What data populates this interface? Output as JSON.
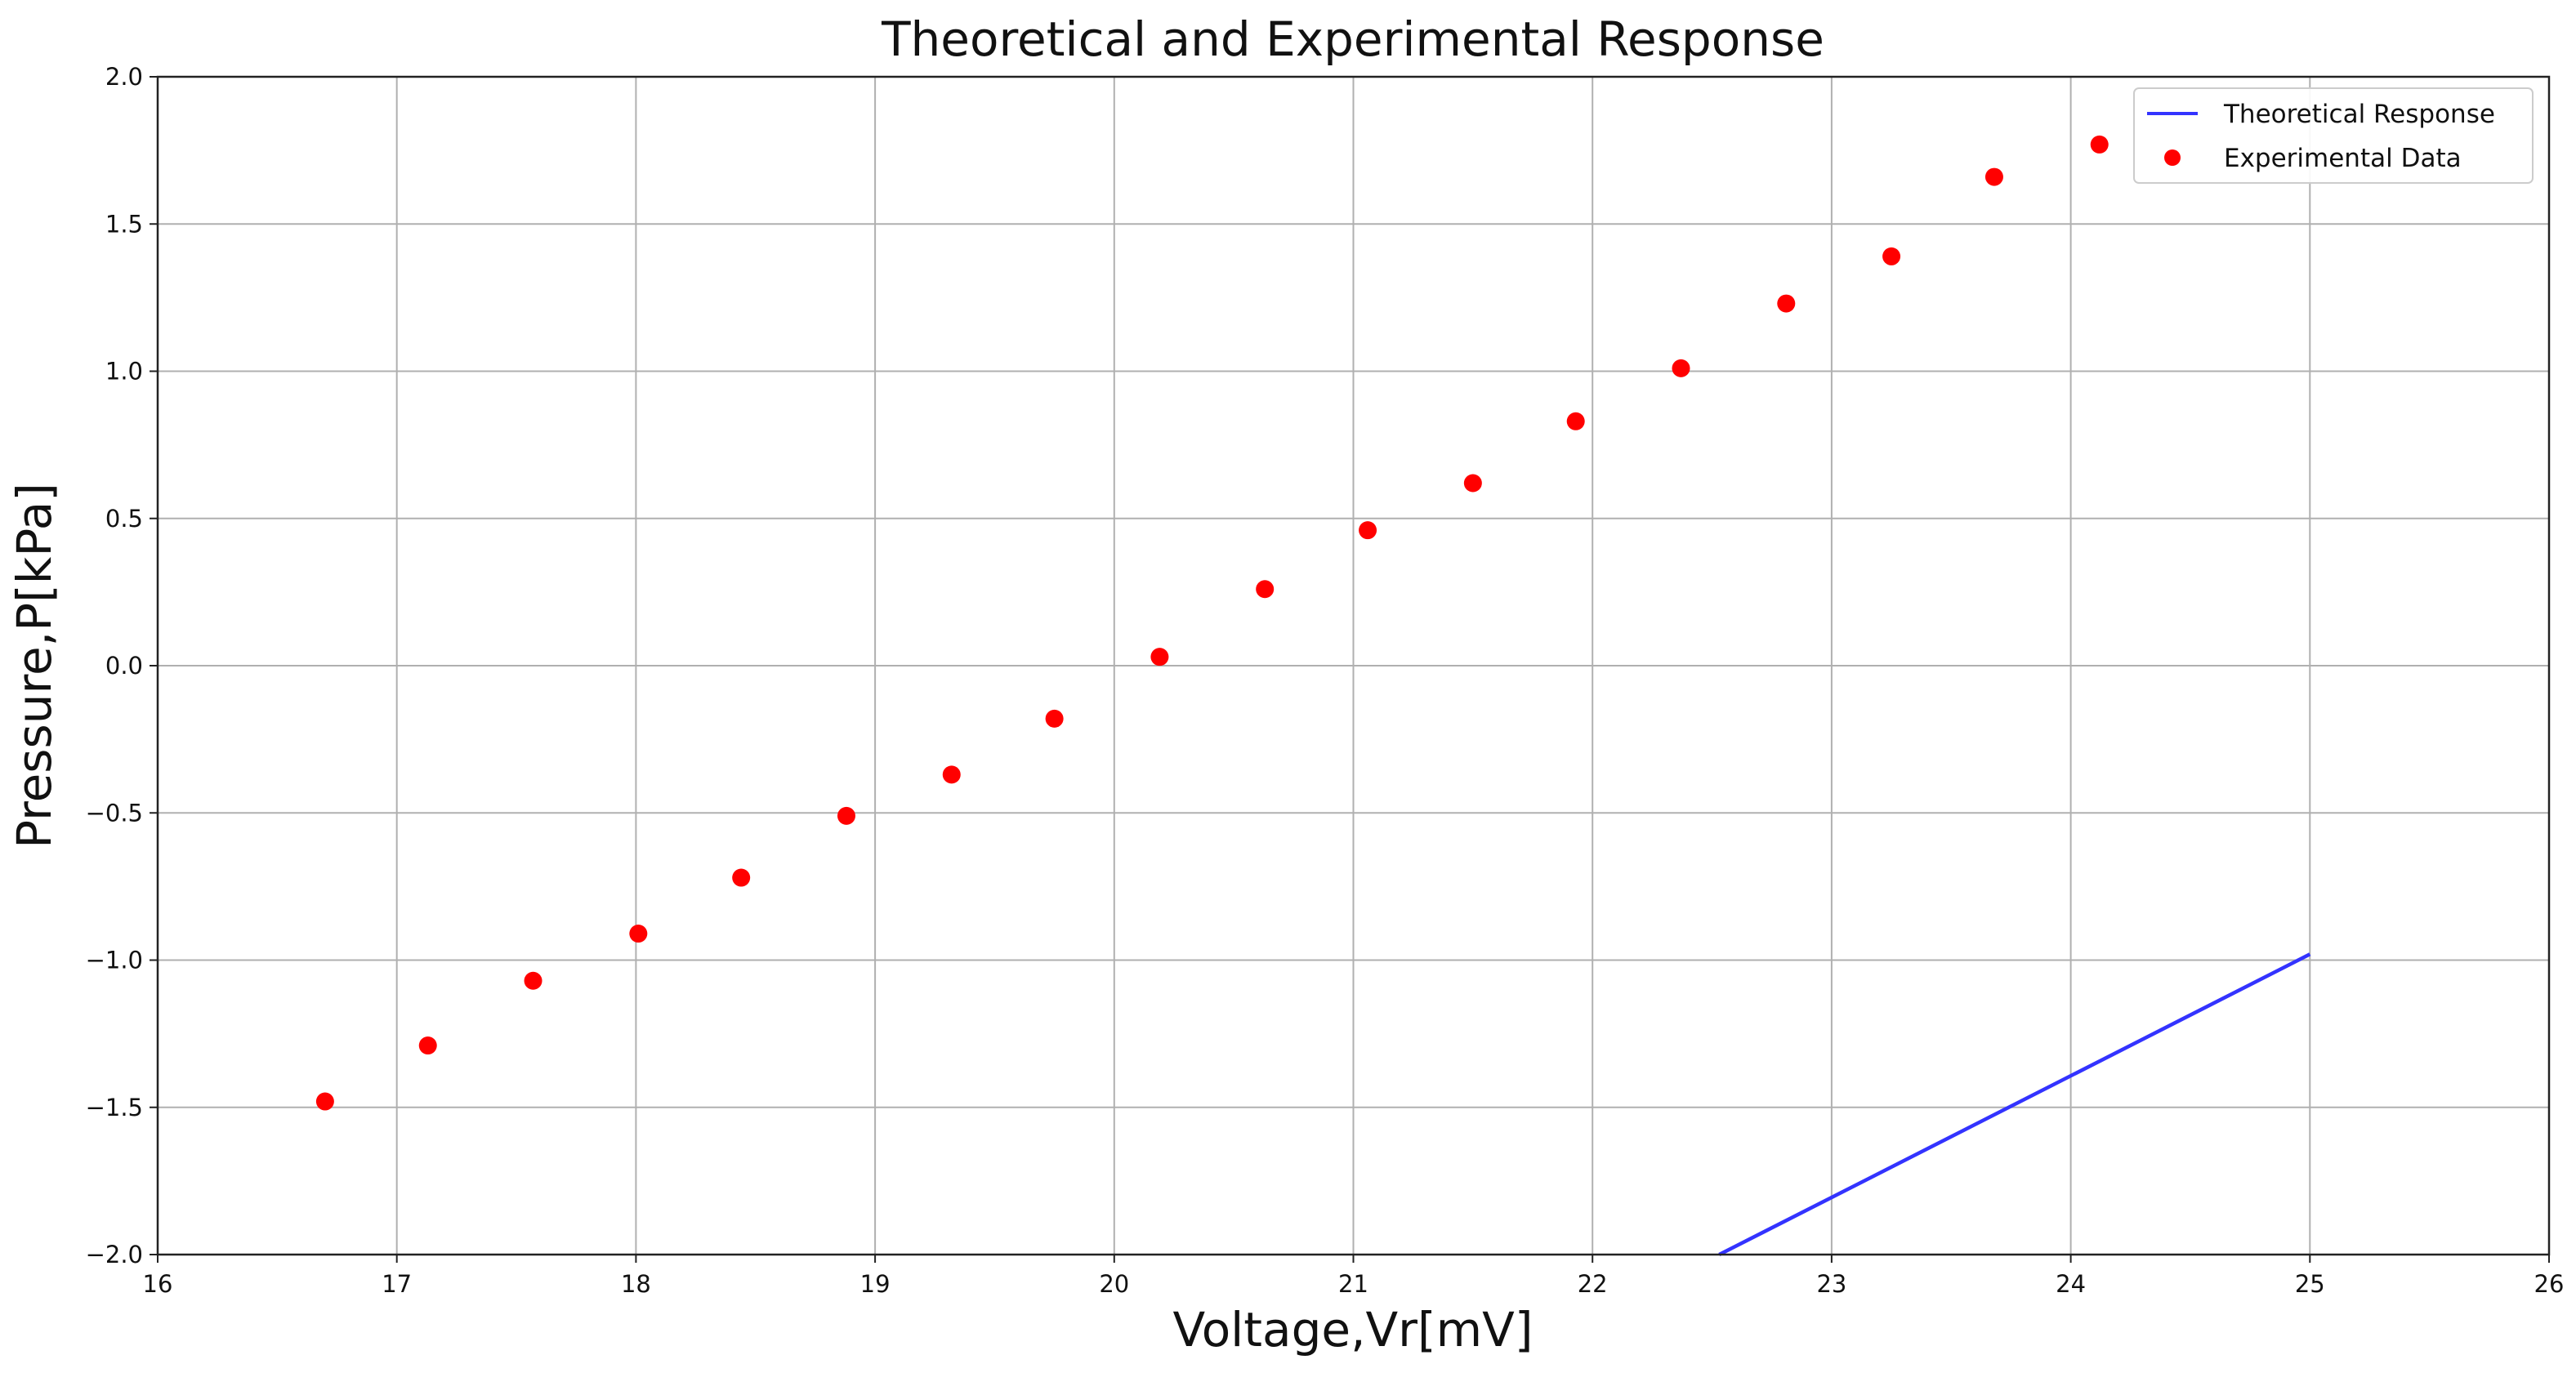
{
  "chart_data": {
    "type": "scatter",
    "title": "Theoretical and Experimental Response",
    "xlabel": "Voltage,Vr[mV]",
    "ylabel": "Pressure,P[kPa]",
    "xlim": [
      16,
      26
    ],
    "ylim": [
      -2.0,
      2.0
    ],
    "grid": true,
    "legend_position": "top-right",
    "x_ticks": [
      "16",
      "17",
      "18",
      "19",
      "20",
      "21",
      "22",
      "23",
      "24",
      "25",
      "26"
    ],
    "y_ticks": [
      "-2.0",
      "-1.5",
      "-1.0",
      "-0.5",
      "0.0",
      "0.5",
      "1.0",
      "1.5",
      "2.0"
    ],
    "series": [
      {
        "name": "Theoretical Response",
        "kind": "line",
        "color": "#3333ff",
        "x": [
          22.53,
          25.0
        ],
        "y": [
          -2.0,
          -0.98
        ]
      },
      {
        "name": "Experimental Data",
        "kind": "scatter",
        "color": "#ff0000",
        "x": [
          16.7,
          17.13,
          17.57,
          18.01,
          18.44,
          18.88,
          19.32,
          19.75,
          20.19,
          20.63,
          21.06,
          21.5,
          21.93,
          22.37,
          22.81,
          23.25,
          23.68,
          24.12
        ],
        "y": [
          -1.48,
          -1.29,
          -1.07,
          -0.91,
          -0.72,
          -0.51,
          -0.37,
          -0.18,
          0.03,
          0.26,
          0.46,
          0.62,
          0.83,
          1.01,
          1.23,
          1.39,
          1.66,
          1.77
        ]
      }
    ]
  }
}
